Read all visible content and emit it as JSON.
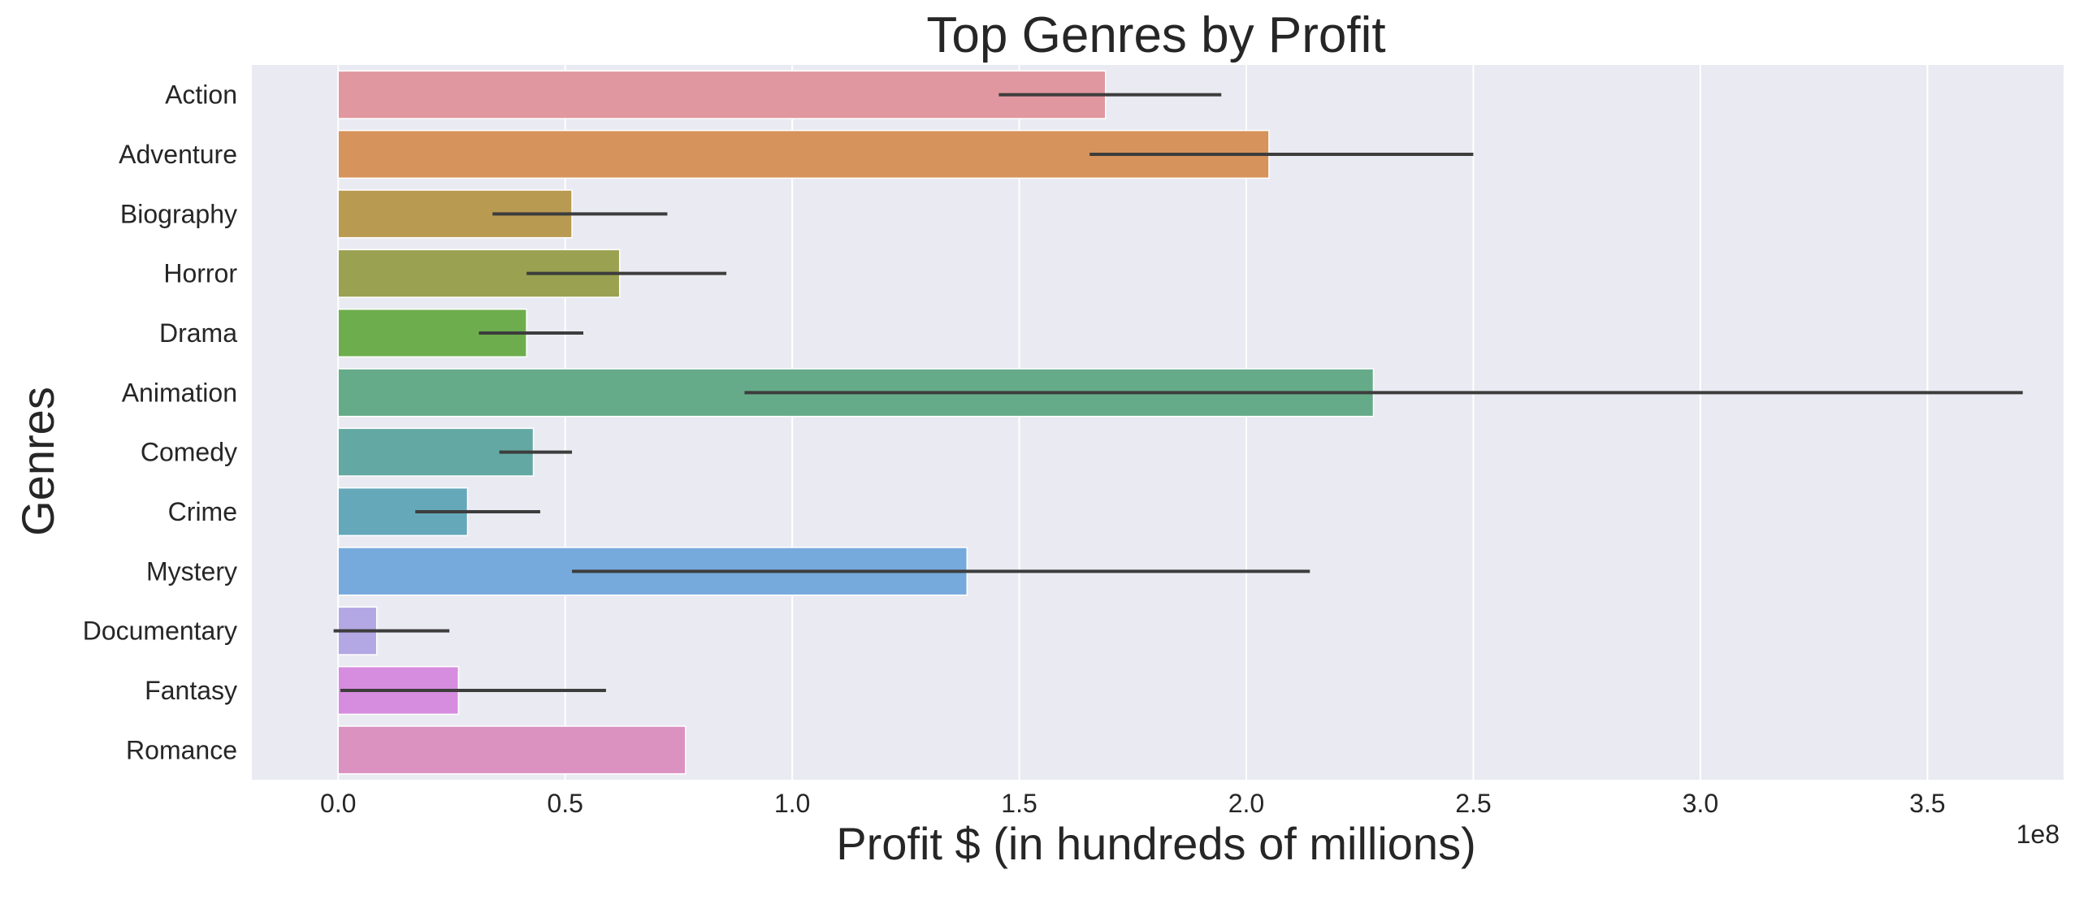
{
  "chart_data": {
    "type": "bar",
    "orientation": "horizontal",
    "title": "Top Genres by Profit",
    "xlabel": "Profit $ (in hundreds of millions)",
    "ylabel": "Genres",
    "x_offset_label": "1e8",
    "xlim": [
      -0.19,
      3.8
    ],
    "x_ticks": [
      0.0,
      0.5,
      1.0,
      1.5,
      2.0,
      2.5,
      3.0,
      3.5
    ],
    "x_tick_labels": [
      "0.0",
      "0.5",
      "1.0",
      "1.5",
      "2.0",
      "2.5",
      "3.0",
      "3.5"
    ],
    "grid": true,
    "categories": [
      "Action",
      "Adventure",
      "Biography",
      "Horror",
      "Drama",
      "Animation",
      "Comedy",
      "Crime",
      "Mystery",
      "Documentary",
      "Fantasy",
      "Romance"
    ],
    "values": [
      1.69,
      2.05,
      0.515,
      0.62,
      0.415,
      2.28,
      0.43,
      0.285,
      1.385,
      0.085,
      0.265,
      0.765
    ],
    "error_bars": [
      [
        1.455,
        1.945
      ],
      [
        1.655,
        2.5
      ],
      [
        0.34,
        0.725
      ],
      [
        0.415,
        0.855
      ],
      [
        0.31,
        0.54
      ],
      [
        0.895,
        3.71
      ],
      [
        0.355,
        0.515
      ],
      [
        0.17,
        0.445
      ],
      [
        0.515,
        2.14
      ],
      [
        -0.01,
        0.245
      ],
      [
        0.005,
        0.59
      ],
      null
    ],
    "colors": [
      "#e1979f",
      "#d6935b",
      "#b89a51",
      "#9aa150",
      "#6ead4e",
      "#66ab89",
      "#63a8a3",
      "#65a8ba",
      "#76aadc",
      "#b3a7e4",
      "#d68ddf",
      "#db92c1"
    ],
    "background_color": "#eaeaf2",
    "grid_color": "#ffffff",
    "error_bar_color": "#3d3d3d"
  }
}
